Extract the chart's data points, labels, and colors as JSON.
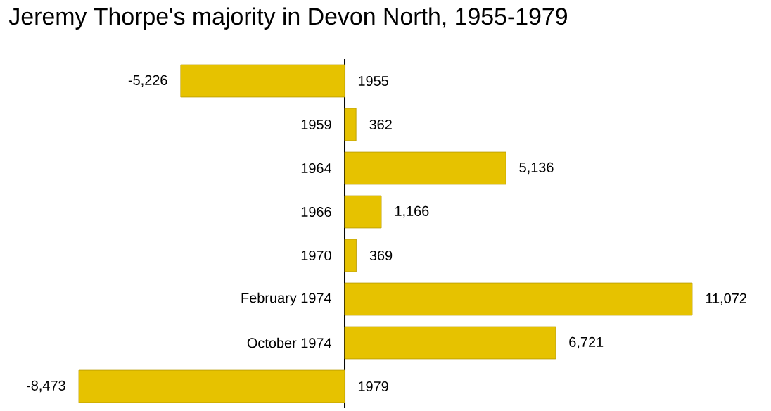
{
  "chart_data": {
    "type": "bar",
    "orientation": "horizontal",
    "title": "Jeremy Thorpe's majority in Devon North, 1955-1979",
    "categories": [
      "1955",
      "1959",
      "1964",
      "1966",
      "1970",
      "February 1974",
      "October 1974",
      "1979"
    ],
    "values": [
      -5226,
      362,
      5136,
      1166,
      369,
      11072,
      6721,
      -8473
    ],
    "value_labels": [
      "-5,226",
      "362",
      "5,136",
      "1,166",
      "369",
      "11,072",
      "6,721",
      "-8,473"
    ],
    "color": "#e6c200"
  }
}
